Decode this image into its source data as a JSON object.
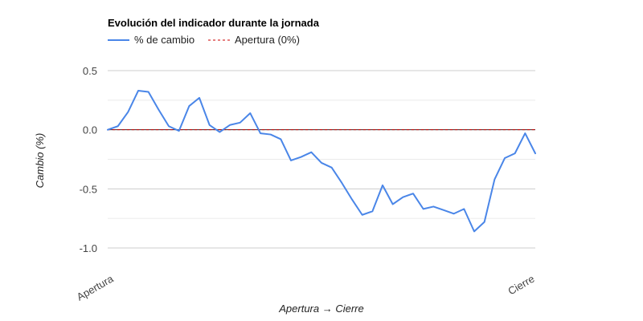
{
  "chart_data": {
    "type": "line",
    "title": "Evolución del indicador durante la jornada",
    "xlabel": "Apertura → Cierre",
    "ylabel": "Cambio (%)",
    "x_tick_labels": [
      "Apertura",
      "Cierre"
    ],
    "ylim": [
      -1.0,
      0.5
    ],
    "y_ticks": [
      0.5,
      0.0,
      -0.5,
      -1.0
    ],
    "y_tick_labels": [
      "0.5",
      "0.0",
      "-0.5",
      "-1.0"
    ],
    "grid": true,
    "legend_position": "top-left",
    "series": [
      {
        "name": "% de cambio",
        "color": "#4a86e8",
        "style": "solid",
        "values": [
          0.0,
          0.03,
          0.15,
          0.33,
          0.32,
          0.17,
          0.03,
          -0.01,
          0.2,
          0.27,
          0.04,
          -0.02,
          0.04,
          0.06,
          0.14,
          -0.03,
          -0.04,
          -0.08,
          -0.26,
          -0.23,
          -0.19,
          -0.28,
          -0.32,
          -0.45,
          -0.59,
          -0.72,
          -0.69,
          -0.47,
          -0.63,
          -0.57,
          -0.54,
          -0.67,
          -0.65,
          -0.68,
          -0.71,
          -0.67,
          -0.86,
          -0.78,
          -0.42,
          -0.24,
          -0.2,
          -0.03,
          -0.2
        ]
      },
      {
        "name": "Apertura (0%)",
        "color": "#cc0000",
        "style": "dashed",
        "values": [
          0.0,
          0.0
        ]
      }
    ]
  }
}
